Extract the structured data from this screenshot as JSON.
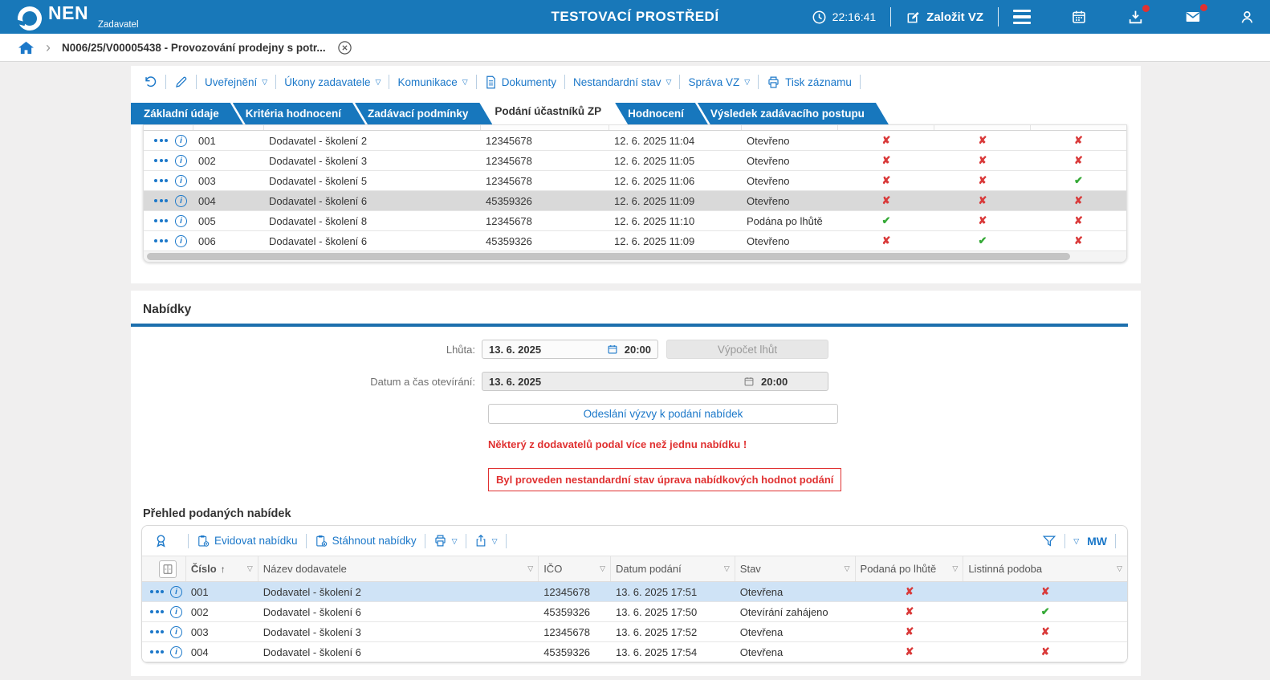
{
  "topbar": {
    "brand": "NEN",
    "brand_sub": "Zadavatel",
    "env_title": "TESTOVACÍ PROSTŘEDÍ",
    "time": "22:16:41",
    "create_vz": "Založit VZ"
  },
  "breadcrumb": {
    "label": "N006/25/V00005438 - Provozování prodejny s potr..."
  },
  "record_toolbar": {
    "items": [
      {
        "label": "Uveřejnění"
      },
      {
        "label": "Úkony zadavatele"
      },
      {
        "label": "Komunikace"
      },
      {
        "label": "Dokumenty"
      },
      {
        "label": "Nestandardní stav"
      },
      {
        "label": "Správa VZ"
      },
      {
        "label": "Tisk záznamu"
      }
    ]
  },
  "tabs": [
    {
      "label": "Základní údaje",
      "active": false
    },
    {
      "label": "Kritéria hodnocení",
      "active": false
    },
    {
      "label": "Zadávací podmínky",
      "active": false
    },
    {
      "label": "Podání účastníků ZP",
      "active": true
    },
    {
      "label": "Hodnocení",
      "active": false
    },
    {
      "label": "Výsledek zadávacího postupu",
      "active": false
    }
  ],
  "participants_table": {
    "rows": [
      {
        "cislo": "001",
        "nazev": "Dodavatel - školení 2",
        "ico": "12345678",
        "datum": "12. 6. 2025 11:04",
        "stav": "Otevřeno",
        "marks": [
          false,
          false,
          false
        ],
        "selected": false
      },
      {
        "cislo": "002",
        "nazev": "Dodavatel - školení 3",
        "ico": "12345678",
        "datum": "12. 6. 2025 11:05",
        "stav": "Otevřeno",
        "marks": [
          false,
          false,
          false
        ],
        "selected": false
      },
      {
        "cislo": "003",
        "nazev": "Dodavatel - školení 5",
        "ico": "12345678",
        "datum": "12. 6. 2025 11:06",
        "stav": "Otevřeno",
        "marks": [
          false,
          false,
          true
        ],
        "selected": false
      },
      {
        "cislo": "004",
        "nazev": "Dodavatel - školení 6",
        "ico": "45359326",
        "datum": "12. 6. 2025 11:09",
        "stav": "Otevřeno",
        "marks": [
          false,
          false,
          false
        ],
        "selected": true
      },
      {
        "cislo": "005",
        "nazev": "Dodavatel - školení 8",
        "ico": "12345678",
        "datum": "12. 6. 2025 11:10",
        "stav": "Podána po lhůtě",
        "marks": [
          true,
          false,
          false
        ],
        "selected": false
      },
      {
        "cislo": "006",
        "nazev": "Dodavatel - školení 6",
        "ico": "45359326",
        "datum": "12. 6. 2025 11:09",
        "stav": "Otevřeno",
        "marks": [
          false,
          true,
          false
        ],
        "selected": false
      }
    ]
  },
  "nabidky": {
    "section_title": "Nabídky",
    "lhuta_label": "Lhůta:",
    "lhuta_date": "13. 6. 2025",
    "lhuta_time": "20:00",
    "vypocet_lhut": "Výpočet lhůt",
    "oteviranni_label": "Datum a čas otevírání:",
    "oteviranni_date": "13. 6. 2025",
    "oteviranni_time": "20:00",
    "send_button": "Odeslání výzvy k podání nabídek",
    "warning_text": "Některý z dodavatelů podal více než jednu nabídku !",
    "alert_box": "Byl proveden nestandardní stav úprava nabídkových hodnot podání"
  },
  "offers": {
    "section_title": "Přehled podaných nabídek",
    "toolbar": {
      "evidovat": "Evidovat nabídku",
      "stahnout": "Stáhnout nabídky",
      "user_initials": "MW"
    },
    "columns": [
      "Číslo",
      "Název dodavatele",
      "IČO",
      "Datum podání",
      "Stav",
      "Podaná po lhůtě",
      "Listinná podoba"
    ],
    "rows": [
      {
        "cislo": "001",
        "nazev": "Dodavatel - školení 2",
        "ico": "12345678",
        "datum": "13. 6. 2025 17:51",
        "stav": "Otevřena",
        "late": false,
        "paper": false,
        "selected": true
      },
      {
        "cislo": "002",
        "nazev": "Dodavatel - školení 6",
        "ico": "45359326",
        "datum": "13. 6. 2025 17:50",
        "stav": "Otevírání zahájeno",
        "late": false,
        "paper": true,
        "selected": false
      },
      {
        "cislo": "003",
        "nazev": "Dodavatel - školení 3",
        "ico": "12345678",
        "datum": "13. 6. 2025 17:52",
        "stav": "Otevřena",
        "late": false,
        "paper": false,
        "selected": false
      },
      {
        "cislo": "004",
        "nazev": "Dodavatel - školení 6",
        "ico": "45359326",
        "datum": "13. 6. 2025 17:54",
        "stav": "Otevřena",
        "late": false,
        "paper": false,
        "selected": false
      }
    ]
  }
}
